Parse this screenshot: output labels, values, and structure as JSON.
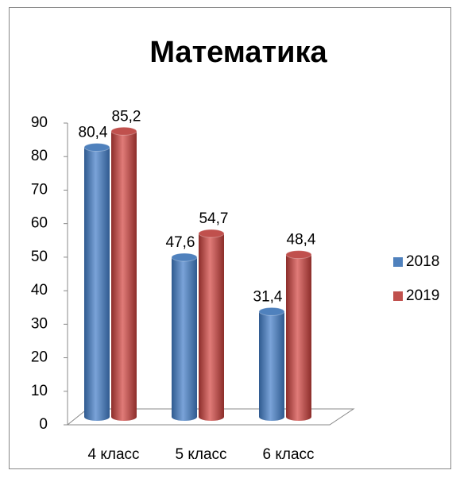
{
  "chart_data": {
    "type": "bar3d",
    "title": "Математика",
    "categories": [
      "4 класс",
      "5 класс",
      "6 класс"
    ],
    "series": [
      {
        "name": "2018",
        "color": "#4F81BD",
        "values": [
          80.4,
          47.6,
          31.4
        ],
        "value_labels": [
          "80,4",
          "47,6",
          "31,4"
        ]
      },
      {
        "name": "2019",
        "color": "#C0504D",
        "values": [
          85.2,
          54.7,
          48.4
        ],
        "value_labels": [
          "85,2",
          "54,7",
          "48,4"
        ]
      }
    ],
    "ylim": [
      0,
      90
    ],
    "yticks": [
      0,
      10,
      20,
      30,
      40,
      50,
      60,
      70,
      80,
      90
    ],
    "legend": "right",
    "grid": false
  }
}
